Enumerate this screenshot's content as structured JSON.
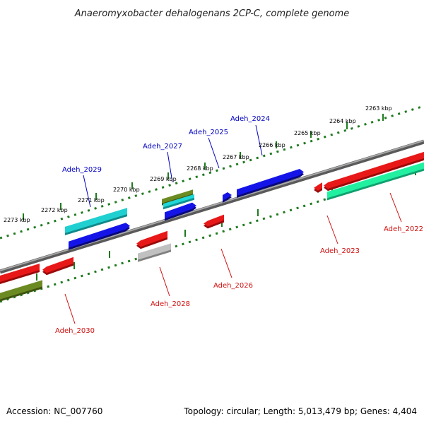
{
  "title": "Anaeromyxobacter dehalogenans 2CP-C, complete genome",
  "footer": {
    "accession": "Accession: NC_007760",
    "summary": "Topology: circular; Length: 5,013,479 bp; Genes: 4,404"
  },
  "colors": {
    "scale": "#1f7a1f",
    "backbone": "#8a8a8a",
    "forward_label": "#0000c0",
    "reverse_label": "#d01010"
  },
  "ticks": [
    {
      "label": "2263 kbp",
      "kbp": 2263
    },
    {
      "label": "2264 kbp",
      "kbp": 2264
    },
    {
      "label": "2265 kbp",
      "kbp": 2265
    },
    {
      "label": "2266 kbp",
      "kbp": 2266
    },
    {
      "label": "2267 kbp",
      "kbp": 2267
    },
    {
      "label": "2268 kbp",
      "kbp": 2268
    },
    {
      "label": "2269 kbp",
      "kbp": 2269
    },
    {
      "label": "2270 kbp",
      "kbp": 2270
    },
    {
      "label": "2271 kbp",
      "kbp": 2271
    },
    {
      "label": "2272 kbp",
      "kbp": 2272
    },
    {
      "label": "2273 kbp",
      "kbp": 2273
    }
  ],
  "genes": [
    {
      "name": "Adeh_2022",
      "strand": "reverse",
      "color": "#e01010"
    },
    {
      "name": "Adeh_2023",
      "strand": "reverse",
      "color": "#e01010"
    },
    {
      "name": "Adeh_2024",
      "strand": "forward",
      "color": "#1010e0"
    },
    {
      "name": "Adeh_2025",
      "strand": "forward",
      "color": "#1010e0"
    },
    {
      "name": "Adeh_2026",
      "strand": "reverse",
      "color": "#e01010"
    },
    {
      "name": "Adeh_2027",
      "strand": "forward",
      "color": "#1010e0"
    },
    {
      "name": "Adeh_2028",
      "strand": "reverse",
      "color": "#e01010"
    },
    {
      "name": "Adeh_2029",
      "strand": "forward",
      "color": "#1010e0"
    },
    {
      "name": "Adeh_2030",
      "strand": "reverse",
      "color": "#e01010"
    }
  ]
}
